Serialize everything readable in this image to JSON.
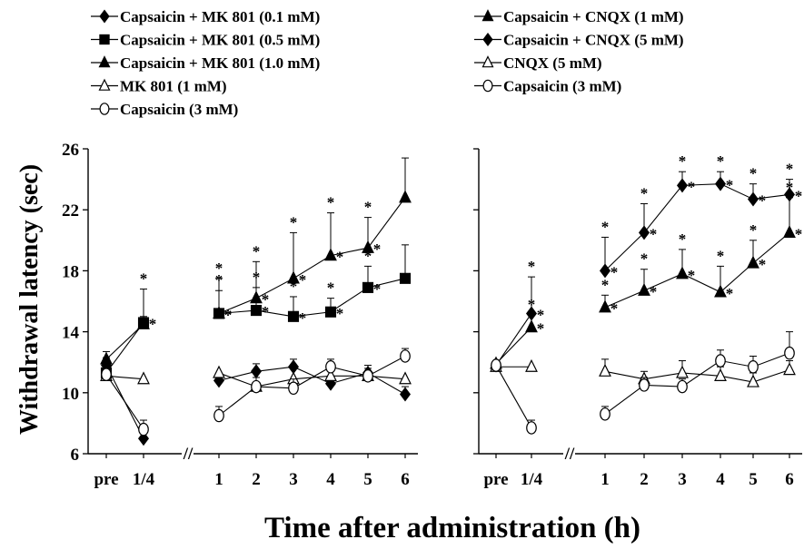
{
  "chart_data": {
    "type": "line",
    "ylabel": "Withdrawal latency (sec)",
    "xlabel": "Time after administration (h)",
    "ylim": [
      6,
      26
    ],
    "yticks": [
      6,
      10,
      14,
      18,
      22,
      26
    ],
    "x_tick_labels": [
      "pre",
      "1/4",
      "1",
      "2",
      "3",
      "4",
      "5",
      "6"
    ],
    "axis_break_symbol": "//",
    "significance_marker": "*",
    "panels": [
      {
        "name": "left",
        "legend": [
          {
            "label": "Capsaicin + MK 801 (0.1 mM)",
            "marker": "diamond",
            "fill": "#000000"
          },
          {
            "label": "Capsaicin + MK 801 (0.5 mM)",
            "marker": "square",
            "fill": "#000000"
          },
          {
            "label": "Capsaicin + MK 801 (1.0 mM)",
            "marker": "triangle",
            "fill": "#000000"
          },
          {
            "label": "MK 801 (1 mM)",
            "marker": "triangle",
            "fill": "#ffffff"
          },
          {
            "label": "Capsaicin (3 mM)",
            "marker": "circle",
            "fill": "#ffffff"
          }
        ],
        "series": [
          {
            "legend_index": 0,
            "marker": "diamond",
            "fill": "#000000",
            "values": [
              11.8,
              7.0,
              10.8,
              11.4,
              11.7,
              10.6,
              11.3,
              9.9
            ],
            "err": [
              0.5,
              0.4,
              0.5,
              0.5,
              0.5,
              0.5,
              0.5,
              0.5
            ],
            "sig": [
              false,
              false,
              false,
              false,
              false,
              false,
              false,
              false
            ]
          },
          {
            "legend_index": 1,
            "marker": "square",
            "fill": "#000000",
            "values": [
              11.3,
              14.6,
              15.2,
              15.4,
              15.0,
              15.3,
              16.9,
              17.5
            ],
            "err": [
              0.5,
              2.2,
              2.3,
              1.5,
              1.3,
              0.9,
              1.4,
              2.2
            ],
            "sig": [
              false,
              true,
              true,
              true,
              true,
              true,
              true,
              false
            ]
          },
          {
            "legend_index": 2,
            "marker": "triangle",
            "fill": "#000000",
            "values": [
              12.2,
              14.5,
              15.2,
              16.2,
              17.5,
              19.0,
              19.5,
              22.8
            ],
            "err": [
              0.5,
              0.5,
              1.5,
              2.4,
              3.0,
              2.8,
              2.0,
              2.6
            ],
            "sig": [
              false,
              false,
              true,
              true,
              true,
              true,
              true,
              false
            ]
          },
          {
            "legend_index": 3,
            "marker": "triangle",
            "fill": "#ffffff",
            "values": [
              11.1,
              10.9,
              11.3,
              10.4,
              10.9,
              11.1,
              11.1,
              10.9
            ],
            "err": [
              0.4,
              0.4,
              0.4,
              0.4,
              0.4,
              0.4,
              0.4,
              0.4
            ],
            "sig": [
              false,
              false,
              false,
              false,
              false,
              false,
              false,
              false
            ]
          },
          {
            "legend_index": 4,
            "marker": "circle",
            "fill": "#ffffff",
            "values": [
              11.2,
              7.6,
              8.5,
              10.4,
              10.3,
              11.7,
              11.1,
              12.4
            ],
            "err": [
              0.5,
              0.6,
              0.6,
              0.6,
              0.6,
              0.5,
              0.5,
              0.5
            ],
            "sig": [
              false,
              false,
              false,
              false,
              false,
              false,
              false,
              false
            ]
          }
        ]
      },
      {
        "name": "right",
        "legend": [
          {
            "label": "Capsaicin + CNQX (1 mM)",
            "marker": "triangle",
            "fill": "#000000"
          },
          {
            "label": "Capsaicin + CNQX (5 mM)",
            "marker": "diamond",
            "fill": "#000000"
          },
          {
            "label": "CNQX (5 mM)",
            "marker": "triangle",
            "fill": "#ffffff"
          },
          {
            "label": "Capsaicin (3 mM)",
            "marker": "circle",
            "fill": "#ffffff"
          }
        ],
        "series": [
          {
            "legend_index": 0,
            "marker": "triangle",
            "fill": "#000000",
            "values": [
              11.9,
              14.3,
              15.6,
              16.7,
              17.8,
              16.6,
              18.5,
              20.5
            ],
            "err": [
              0.4,
              0.8,
              0.8,
              1.4,
              1.6,
              1.7,
              1.5,
              2.3
            ],
            "sig": [
              false,
              true,
              true,
              true,
              true,
              true,
              true,
              true
            ]
          },
          {
            "legend_index": 1,
            "marker": "diamond",
            "fill": "#000000",
            "values": [
              11.8,
              15.2,
              18.0,
              20.5,
              23.6,
              23.7,
              22.7,
              23.0
            ],
            "err": [
              0.4,
              2.4,
              2.2,
              1.9,
              0.9,
              0.8,
              1.0,
              1.0
            ],
            "sig": [
              false,
              true,
              true,
              true,
              true,
              true,
              true,
              true
            ]
          },
          {
            "legend_index": 2,
            "marker": "triangle",
            "fill": "#ffffff",
            "values": [
              11.7,
              11.7,
              11.4,
              10.9,
              11.3,
              11.1,
              10.7,
              11.5
            ],
            "err": [
              0.4,
              0.4,
              0.8,
              0.5,
              0.8,
              0.6,
              0.6,
              0.6
            ],
            "sig": [
              false,
              false,
              false,
              false,
              false,
              false,
              false,
              false
            ]
          },
          {
            "legend_index": 3,
            "marker": "circle",
            "fill": "#ffffff",
            "values": [
              11.8,
              7.7,
              8.6,
              10.5,
              10.4,
              12.1,
              11.7,
              12.6
            ],
            "err": [
              0.4,
              0.5,
              0.5,
              0.5,
              0.5,
              0.7,
              0.7,
              1.4
            ],
            "sig": [
              false,
              false,
              false,
              false,
              false,
              false,
              false,
              false
            ]
          }
        ]
      }
    ]
  }
}
